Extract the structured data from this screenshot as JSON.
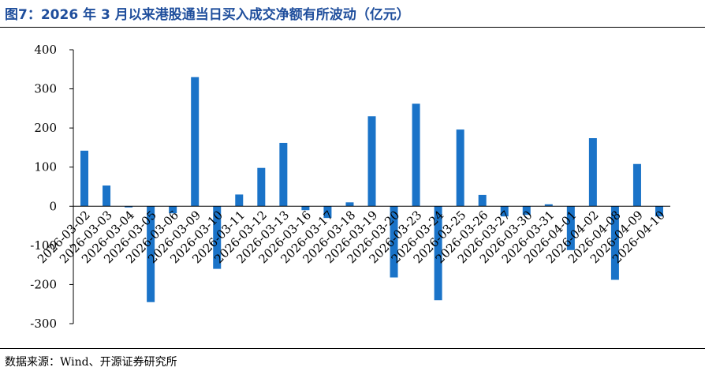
{
  "header": {
    "title": "图7：2026 年 3 月以来港股通当日买入成交净额有所波动（亿元）"
  },
  "footer": {
    "source": "数据来源：Wind、开源证券研究所"
  },
  "chart_data": {
    "type": "bar",
    "categories": [
      "2026-03-02",
      "2026-03-03",
      "2026-03-04",
      "2026-03-05",
      "2026-03-06",
      "2026-03-09",
      "2026-03-10",
      "2026-03-11",
      "2026-03-12",
      "2026-03-13",
      "2026-03-16",
      "2026-03-17",
      "2026-03-18",
      "2026-03-19",
      "2026-03-20",
      "2026-03-23",
      "2026-03-24",
      "2026-03-25",
      "2026-03-26",
      "2026-03-27",
      "2026-03-30",
      "2026-03-31",
      "2026-04-01",
      "2026-04-02",
      "2026-04-08",
      "2026-04-09",
      "2026-04-10"
    ],
    "values": [
      142,
      53,
      -3,
      -245,
      -18,
      330,
      -160,
      30,
      98,
      162,
      -10,
      -30,
      10,
      230,
      -182,
      262,
      -240,
      196,
      29,
      -26,
      -22,
      5,
      -112,
      174,
      -188,
      108,
      -26
    ],
    "yticks": [
      -300,
      -200,
      -100,
      0,
      100,
      200,
      300,
      400
    ],
    "ylim": [
      -300,
      400
    ],
    "color": "#1a73c8",
    "grid": false,
    "legend": "none"
  }
}
